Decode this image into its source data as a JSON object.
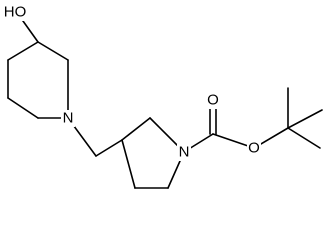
{
  "atoms": {
    "hydroxyl": "HO",
    "piperidine_n": "N",
    "pyrrolidine_n": "N",
    "carbonyl_o": "O",
    "ester_o": "O"
  }
}
